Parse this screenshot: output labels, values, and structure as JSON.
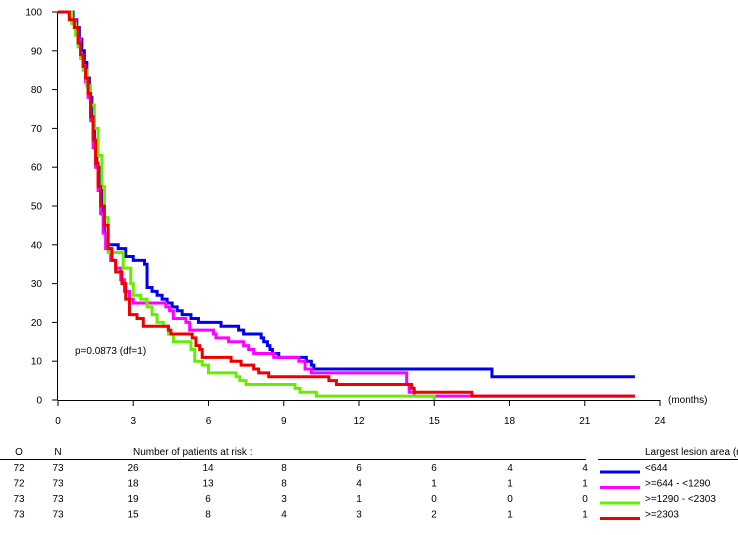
{
  "chart_data": {
    "type": "line",
    "title": "",
    "xlabel": "(months)",
    "ylabel": "",
    "xlim": [
      0,
      24
    ],
    "ylim": [
      0,
      100
    ],
    "x_ticks": [
      "0",
      "3",
      "6",
      "9",
      "12",
      "15",
      "18",
      "21",
      "24"
    ],
    "y_ticks": [
      "0",
      "10",
      "20",
      "30",
      "40",
      "50",
      "60",
      "70",
      "80",
      "90",
      "100"
    ],
    "grid": false,
    "annotation": "p=0.0873 (df=1)",
    "series": [
      {
        "name": "<644",
        "color": "#0000ee",
        "points": [
          [
            0,
            100
          ],
          [
            0.55,
            100
          ],
          [
            0.6,
            98
          ],
          [
            0.75,
            96
          ],
          [
            0.85,
            93
          ],
          [
            0.95,
            90
          ],
          [
            1.05,
            87
          ],
          [
            1.15,
            83
          ],
          [
            1.25,
            78
          ],
          [
            1.35,
            72
          ],
          [
            1.45,
            66
          ],
          [
            1.55,
            60
          ],
          [
            1.65,
            54
          ],
          [
            1.75,
            48
          ],
          [
            1.85,
            43
          ],
          [
            1.95,
            40
          ],
          [
            2.4,
            39
          ],
          [
            2.7,
            37
          ],
          [
            3.0,
            36
          ],
          [
            3.45,
            35
          ],
          [
            3.55,
            29
          ],
          [
            3.75,
            28
          ],
          [
            3.95,
            27
          ],
          [
            4.15,
            26
          ],
          [
            4.35,
            25
          ],
          [
            4.55,
            24
          ],
          [
            4.75,
            23
          ],
          [
            4.95,
            22
          ],
          [
            5.3,
            21
          ],
          [
            5.6,
            20
          ],
          [
            6.5,
            19
          ],
          [
            7.2,
            18
          ],
          [
            7.4,
            17
          ],
          [
            8.1,
            16
          ],
          [
            8.2,
            15
          ],
          [
            8.35,
            14
          ],
          [
            8.45,
            13
          ],
          [
            8.55,
            12
          ],
          [
            8.8,
            11
          ],
          [
            9.35,
            11
          ],
          [
            9.9,
            10
          ],
          [
            10.1,
            9
          ],
          [
            10.2,
            8
          ],
          [
            12.9,
            8
          ],
          [
            15.6,
            8
          ],
          [
            17.3,
            6
          ],
          [
            23,
            6
          ]
        ]
      },
      {
        "name": ">=644 - <1290",
        "color": "#ff00ff",
        "points": [
          [
            0,
            100
          ],
          [
            0.45,
            100
          ],
          [
            0.55,
            98
          ],
          [
            0.7,
            96
          ],
          [
            0.8,
            93
          ],
          [
            0.9,
            89
          ],
          [
            1.0,
            86
          ],
          [
            1.1,
            82
          ],
          [
            1.2,
            78
          ],
          [
            1.3,
            72
          ],
          [
            1.4,
            65
          ],
          [
            1.5,
            60
          ],
          [
            1.6,
            54
          ],
          [
            1.7,
            48
          ],
          [
            1.8,
            43
          ],
          [
            1.9,
            39
          ],
          [
            2.1,
            36
          ],
          [
            2.3,
            34
          ],
          [
            2.5,
            31
          ],
          [
            2.65,
            28
          ],
          [
            2.85,
            26
          ],
          [
            3.0,
            25
          ],
          [
            4.3,
            24
          ],
          [
            4.45,
            23
          ],
          [
            4.6,
            21
          ],
          [
            5.1,
            20
          ],
          [
            5.25,
            18
          ],
          [
            6.2,
            17
          ],
          [
            6.3,
            16
          ],
          [
            6.8,
            15
          ],
          [
            7.4,
            14
          ],
          [
            7.6,
            13
          ],
          [
            7.8,
            12
          ],
          [
            8.6,
            11
          ],
          [
            9.6,
            10
          ],
          [
            9.85,
            8
          ],
          [
            10.1,
            7
          ],
          [
            13.8,
            7
          ],
          [
            13.9,
            4
          ],
          [
            14.0,
            2
          ],
          [
            14.2,
            1
          ],
          [
            16.3,
            1
          ],
          [
            23,
            1
          ]
        ]
      },
      {
        "name": ">=1290 - <2303",
        "color": "#66ee00",
        "points": [
          [
            0,
            100
          ],
          [
            0.45,
            100
          ],
          [
            0.55,
            97
          ],
          [
            0.7,
            94
          ],
          [
            0.8,
            91
          ],
          [
            0.9,
            88
          ],
          [
            1.0,
            85
          ],
          [
            1.15,
            81
          ],
          [
            1.3,
            76
          ],
          [
            1.45,
            70
          ],
          [
            1.6,
            63
          ],
          [
            1.75,
            55
          ],
          [
            1.85,
            47
          ],
          [
            2.0,
            38
          ],
          [
            2.6,
            34
          ],
          [
            2.9,
            30
          ],
          [
            3.0,
            27
          ],
          [
            3.3,
            26
          ],
          [
            3.55,
            24
          ],
          [
            3.75,
            22
          ],
          [
            3.95,
            20
          ],
          [
            4.2,
            19
          ],
          [
            4.4,
            17
          ],
          [
            4.6,
            15
          ],
          [
            5.3,
            13
          ],
          [
            5.45,
            10
          ],
          [
            5.75,
            9
          ],
          [
            6.0,
            7
          ],
          [
            7.1,
            6
          ],
          [
            7.25,
            5
          ],
          [
            7.5,
            4
          ],
          [
            9.45,
            3
          ],
          [
            9.65,
            2
          ],
          [
            10.3,
            1
          ],
          [
            14.9,
            1
          ],
          [
            15.0,
            0
          ]
        ]
      },
      {
        "name": ">=2303",
        "color": "#ee0000",
        "points": [
          [
            0,
            100
          ],
          [
            0.35,
            100
          ],
          [
            0.45,
            98
          ],
          [
            0.65,
            96
          ],
          [
            0.8,
            92
          ],
          [
            0.9,
            89
          ],
          [
            1.0,
            86
          ],
          [
            1.1,
            83
          ],
          [
            1.2,
            79
          ],
          [
            1.3,
            73
          ],
          [
            1.4,
            67
          ],
          [
            1.5,
            61
          ],
          [
            1.6,
            55
          ],
          [
            1.7,
            50
          ],
          [
            1.85,
            45
          ],
          [
            2.0,
            39
          ],
          [
            2.15,
            36
          ],
          [
            2.3,
            33
          ],
          [
            2.55,
            30
          ],
          [
            2.7,
            26
          ],
          [
            2.85,
            22
          ],
          [
            3.15,
            21
          ],
          [
            3.4,
            19
          ],
          [
            4.4,
            18
          ],
          [
            4.5,
            17
          ],
          [
            5.35,
            16
          ],
          [
            5.5,
            14
          ],
          [
            5.65,
            13
          ],
          [
            5.75,
            11
          ],
          [
            6.9,
            10
          ],
          [
            7.3,
            9
          ],
          [
            7.8,
            8
          ],
          [
            8.0,
            7
          ],
          [
            8.4,
            6
          ],
          [
            10.8,
            5
          ],
          [
            11.1,
            4
          ],
          [
            14.1,
            3
          ],
          [
            14.2,
            2
          ],
          [
            16.5,
            1
          ],
          [
            23,
            1
          ]
        ]
      }
    ]
  },
  "risk_table": {
    "header_o": "O",
    "header_n": "N",
    "title": "Number of patients at risk :",
    "legend_title": "Largest lesion area (r",
    "rows": [
      {
        "o": "72",
        "n": "73",
        "counts": [
          "26",
          "14",
          "8",
          "6",
          "6",
          "4",
          "4"
        ],
        "label": "<644",
        "color": "#0000ee"
      },
      {
        "o": "72",
        "n": "73",
        "counts": [
          "18",
          "13",
          "8",
          "4",
          "1",
          "1",
          "1"
        ],
        "label": ">=644 - <1290",
        "color": "#ff00ff"
      },
      {
        "o": "73",
        "n": "73",
        "counts": [
          "19",
          "6",
          "3",
          "1",
          "0",
          "0",
          "0"
        ],
        "label": ">=1290 - <2303",
        "color": "#66ee00"
      },
      {
        "o": "73",
        "n": "73",
        "counts": [
          "15",
          "8",
          "4",
          "3",
          "2",
          "1",
          "1"
        ],
        "label": ">=2303",
        "color": "#ee0000"
      }
    ]
  }
}
